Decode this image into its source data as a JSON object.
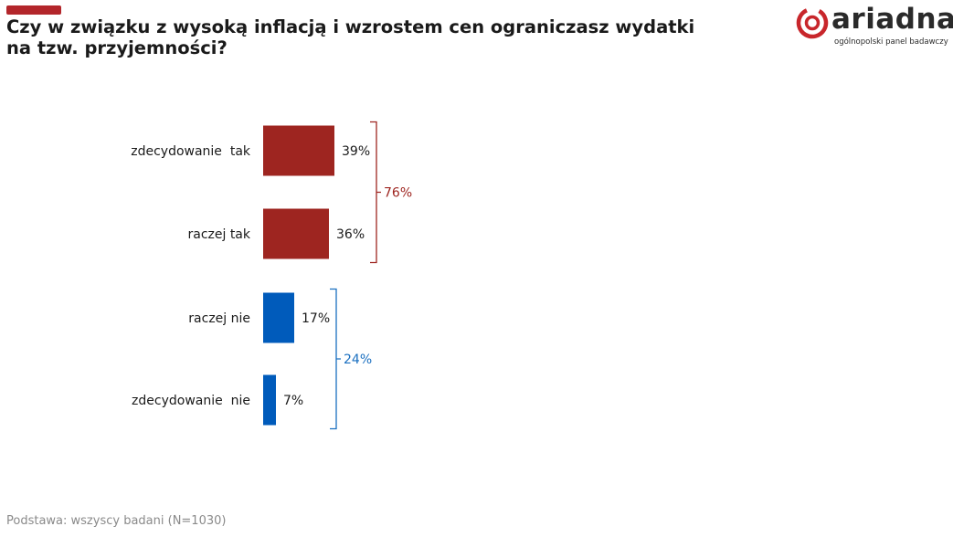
{
  "header": {
    "title": "Czy w związku z wysoką inflacją i wzrostem cen ograniczasz wydatki na tzw. przyjemności?"
  },
  "logo": {
    "wordmark": "ariadna",
    "tagline": "ogólnopolski panel badawczy",
    "brand_color": "#c8262b"
  },
  "chart_data": {
    "type": "bar",
    "orientation": "horizontal",
    "categories": [
      "zdecydowanie  tak",
      "raczej tak",
      "raczej nie",
      "zdecydowanie  nie"
    ],
    "values": [
      39,
      36,
      17,
      7
    ],
    "value_labels": [
      "39%",
      "36%",
      "17%",
      "7%"
    ],
    "colors": [
      "#9e2520",
      "#9e2520",
      "#005bbb",
      "#005bbb"
    ],
    "groups": [
      {
        "label": "76%",
        "members": [
          0,
          1
        ],
        "color": "#9e2520"
      },
      {
        "label": "24%",
        "members": [
          2,
          3
        ],
        "color": "#1a6fc0"
      }
    ],
    "title": "",
    "xlabel": "",
    "ylabel": ""
  },
  "footer": {
    "note": "Podstawa: wszyscy badani (N=1030)"
  }
}
